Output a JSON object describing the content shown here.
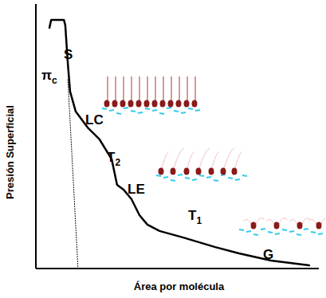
{
  "chart_data": {
    "type": "line",
    "x_label": "Área por molécula",
    "y_label": "Presión Superficial",
    "xlim": [
      0,
      100
    ],
    "ylim": [
      0,
      100
    ],
    "tick_labels": false,
    "grid": false,
    "series": [
      {
        "color": "#000000",
        "line_style": "solid",
        "x": [
          4.8,
          5.4,
          9.9,
          10.4,
          11.3,
          12.1,
          14.1,
          18.3,
          22.5,
          26.8,
          28.7,
          31.0,
          33.8,
          36.6,
          39.4,
          43.7,
          52.1,
          63.4,
          71.8,
          83.1,
          96.6
        ],
        "values": [
          91.0,
          94.0,
          94.0,
          91.9,
          77.4,
          66.9,
          59.3,
          53.3,
          48.8,
          41.3,
          31.6,
          29.8,
          26.2,
          20.2,
          16.6,
          14.2,
          11.7,
          8.1,
          5.7,
          3.0,
          1.2
        ]
      },
      {
        "color": "#000000",
        "line_style": "dotted",
        "x": [
          11.3,
          14.9
        ],
        "values": [
          71.4,
          0
        ]
      }
    ],
    "annotations": [
      {
        "text": "π",
        "sub": "c"
      },
      {
        "text": "S"
      },
      {
        "text": "LC"
      },
      {
        "text": "T",
        "sub": "2"
      },
      {
        "text": "LE"
      },
      {
        "text": "T",
        "sub": "1"
      },
      {
        "text": "G"
      }
    ]
  }
}
